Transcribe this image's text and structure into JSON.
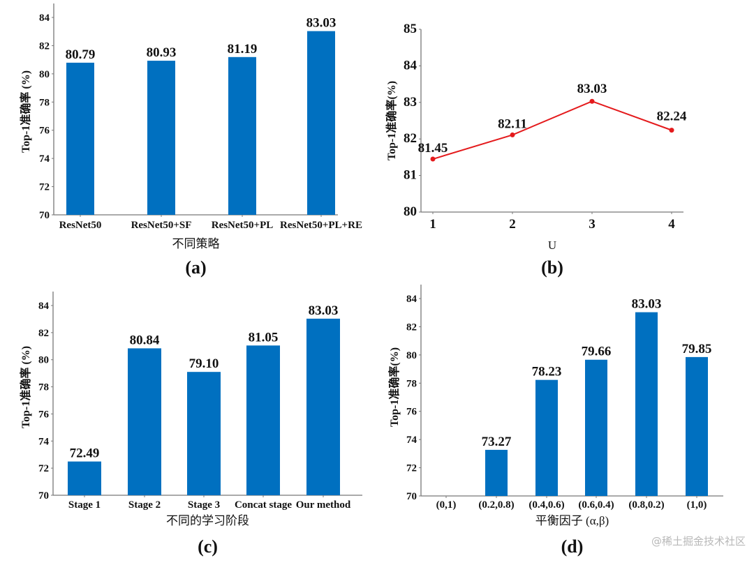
{
  "watermark": "@稀土掘金技术社区",
  "bar_color": "#0070C0",
  "line_color": "#E41A1C",
  "chart_data": [
    {
      "id": "a",
      "type": "bar",
      "panel_label": "(a)",
      "title": "",
      "xlabel": "不同策略",
      "ylabel": "Top-1准确率 (%)",
      "categories": [
        "ResNet50",
        "ResNet50+SF",
        "ResNet50+PL",
        "ResNet50+PL+RE"
      ],
      "values": [
        80.79,
        80.93,
        81.19,
        83.03
      ],
      "data_labels": [
        "80.79",
        "80.93",
        "81.19",
        "83.03"
      ],
      "ylim": [
        70,
        85
      ],
      "yticks": [
        70,
        72,
        74,
        76,
        78,
        80,
        82,
        84
      ],
      "grid": false
    },
    {
      "id": "b",
      "type": "line",
      "panel_label": "(b)",
      "title": "",
      "xlabel": "U",
      "ylabel": "Top-1准确率(%)",
      "x": [
        1,
        2,
        3,
        4
      ],
      "xtick_labels": [
        "1",
        "2",
        "3",
        "4"
      ],
      "values": [
        81.45,
        82.11,
        83.03,
        82.24
      ],
      "data_labels": [
        "81.45",
        "82.11",
        "83.03",
        "82.24"
      ],
      "ylim": [
        80,
        85
      ],
      "yticks": [
        80,
        81,
        82,
        83,
        84,
        85
      ],
      "grid": false
    },
    {
      "id": "c",
      "type": "bar",
      "panel_label": "(c)",
      "title": "",
      "xlabel": "不同的学习阶段",
      "ylabel": "Top-1准确率 (%)",
      "categories": [
        "Stage 1",
        "Stage 2",
        "Stage 3",
        "Concat stage",
        "Our method"
      ],
      "values": [
        72.49,
        80.84,
        79.1,
        81.05,
        83.03
      ],
      "data_labels": [
        "72.49",
        "80.84",
        "79.10",
        "81.05",
        "83.03"
      ],
      "ylim": [
        70,
        85
      ],
      "yticks": [
        70,
        72,
        74,
        76,
        78,
        80,
        82,
        84
      ],
      "grid": false
    },
    {
      "id": "d",
      "type": "bar",
      "panel_label": "(d)",
      "title": "",
      "xlabel": "平衡因子 (α,β)",
      "ylabel": "Top-1准确率(%)",
      "categories": [
        "(0,1)",
        "(0.2,0.8)",
        "(0.4,0.6)",
        "(0.6,0.4)",
        "(0.8,0.2)",
        "(1,0)"
      ],
      "values": [
        null,
        73.27,
        78.23,
        79.66,
        83.03,
        79.85
      ],
      "data_labels": [
        "",
        "73.27",
        "78.23",
        "79.66",
        "83.03",
        "79.85"
      ],
      "ylim": [
        70,
        85
      ],
      "yticks": [
        70,
        72,
        74,
        76,
        78,
        80,
        82,
        84
      ],
      "grid": false
    }
  ]
}
